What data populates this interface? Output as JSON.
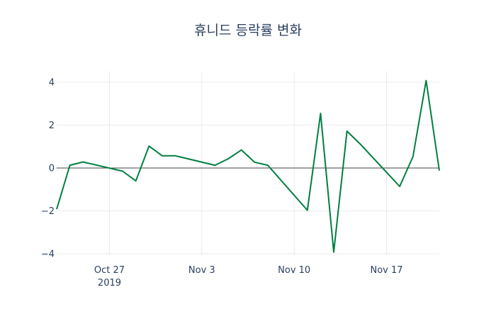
{
  "chart_data": {
    "type": "line",
    "title": "휴니드 등락률 변화",
    "xlabel": "",
    "ylabel": "",
    "x": [
      "2019-10-23",
      "2019-10-24",
      "2019-10-25",
      "2019-10-28",
      "2019-10-29",
      "2019-10-30",
      "2019-10-31",
      "2019-11-01",
      "2019-11-04",
      "2019-11-05",
      "2019-11-06",
      "2019-11-07",
      "2019-11-08",
      "2019-11-11",
      "2019-11-12",
      "2019-11-13",
      "2019-11-14",
      "2019-11-15",
      "2019-11-18",
      "2019-11-19",
      "2019-11-20",
      "2019-11-21"
    ],
    "series": [
      {
        "name": "등락률",
        "color": "#007f3f",
        "values": [
          -1.92,
          0.13,
          0.28,
          -0.15,
          -0.6,
          1.02,
          0.57,
          0.57,
          0.13,
          0.43,
          0.84,
          0.27,
          0.13,
          -1.97,
          2.55,
          -3.92,
          1.72,
          1.12,
          -0.86,
          0.53,
          4.08,
          -0.12
        ]
      }
    ],
    "xlim": [
      "2019-10-23",
      "2019-11-21"
    ],
    "ylim": [
      -4.3,
      4.5
    ],
    "xticks": [
      {
        "date": "2019-10-27",
        "label": "Oct 27",
        "sublabel": "2019"
      },
      {
        "date": "2019-11-03",
        "label": "Nov 3"
      },
      {
        "date": "2019-11-10",
        "label": "Nov 10"
      },
      {
        "date": "2019-11-17",
        "label": "Nov 17"
      }
    ],
    "yticks": [
      -4,
      -2,
      0,
      2,
      4
    ],
    "ytick_labels": [
      "−4",
      "−2",
      "0",
      "2",
      "4"
    ],
    "grid": true,
    "zeroline": true
  }
}
